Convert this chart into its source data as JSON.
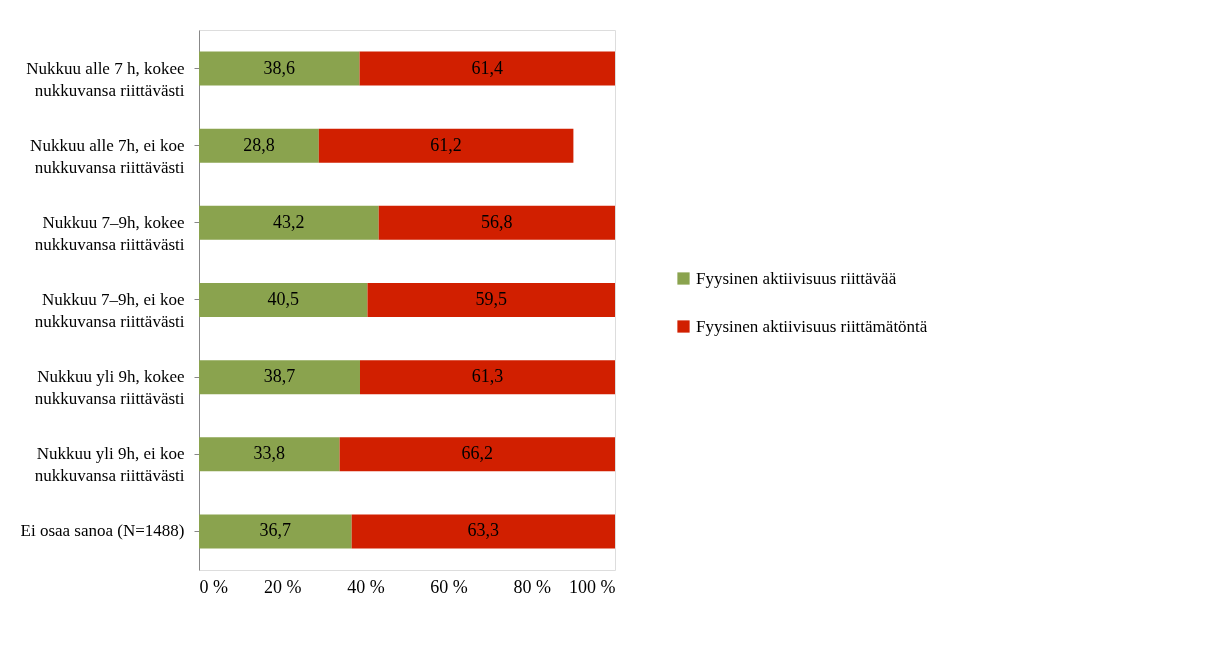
{
  "chart_data": {
    "type": "bar",
    "orientation": "horizontal",
    "stacked": true,
    "categories": [
      "Nukkuu alle 7 h, kokee nukkuvansa riittävästi",
      "Nukkuu alle 7h, ei koe nukkuvansa riittävästi",
      "Nukkuu 7–9h, kokee nukkuvansa riittävästi",
      "Nukkuu 7–9h, ei koe nukkuvansa riittävästi",
      "Nukkuu yli 9h, kokee nukkuvansa riittävästi",
      "Nukkuu yli 9h, ei koe nukkuvansa riittävästi",
      "Ei osaa sanoa (N=1488)"
    ],
    "series": [
      {
        "name": "Fyysinen aktiivisuus riittävää",
        "color": "#8aa34e",
        "values": [
          38.6,
          28.8,
          43.2,
          40.5,
          38.7,
          33.8,
          36.7
        ],
        "value_labels": [
          "38,6",
          "28,8",
          "43,2",
          "40,5",
          "38,7",
          "33,8",
          "36,7"
        ]
      },
      {
        "name": "Fyysinen aktiivisuus riittämätöntä",
        "color": "#d11f00",
        "values": [
          61.4,
          61.2,
          56.8,
          59.5,
          61.3,
          66.2,
          63.3
        ],
        "value_labels": [
          "61,4",
          "61,2",
          "56,8",
          "59,5",
          "61,3",
          "66,2",
          "63,3"
        ]
      }
    ],
    "xlim": [
      0,
      100
    ],
    "xticks": [
      {
        "value": 0,
        "label": "0 %"
      },
      {
        "value": 20,
        "label": "20 %"
      },
      {
        "value": 40,
        "label": "40 %"
      },
      {
        "value": 60,
        "label": "60 %"
      },
      {
        "value": 80,
        "label": "80 %"
      },
      {
        "value": 100,
        "label": "100 %"
      }
    ],
    "grid": false,
    "legend": "right"
  }
}
